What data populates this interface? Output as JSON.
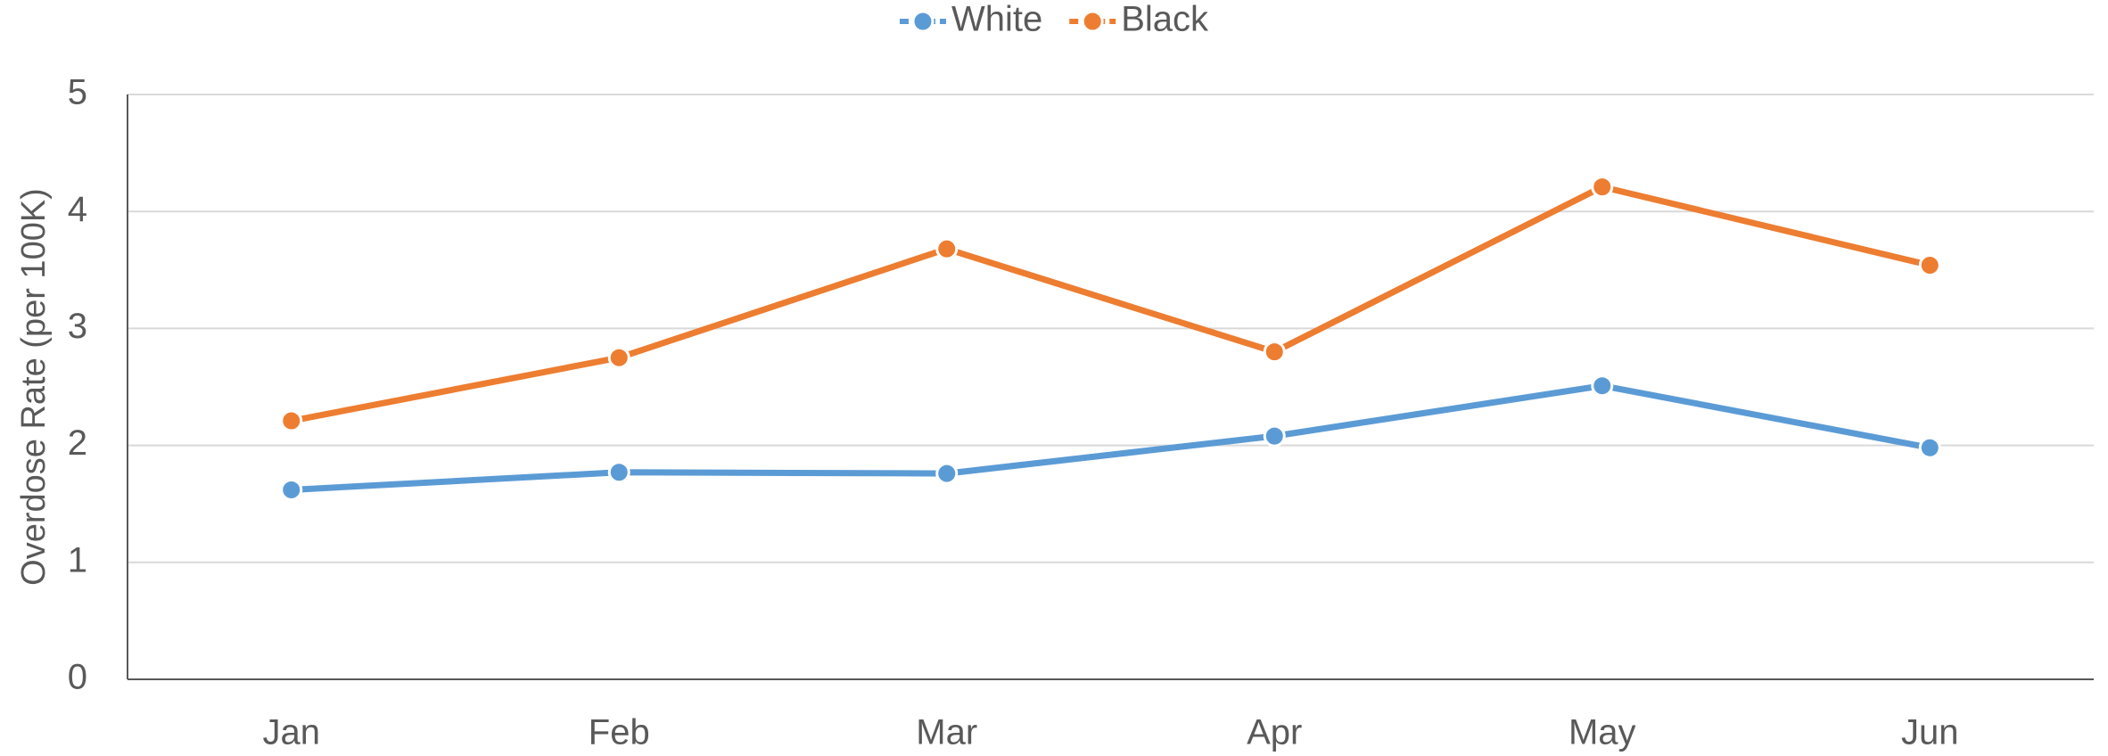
{
  "chart_data": {
    "type": "line",
    "y_label": "Overdose Rate (per 100K)",
    "categories": [
      "Jan",
      "Feb",
      "Mar",
      "Apr",
      "May",
      "Jun"
    ],
    "series": [
      {
        "name": "White",
        "color": "#5b9bd5",
        "values": [
          1.62,
          1.77,
          1.76,
          2.08,
          2.51,
          1.98
        ]
      },
      {
        "name": "Black",
        "color": "#ed7d31",
        "values": [
          2.21,
          2.75,
          3.68,
          2.8,
          4.21,
          3.54
        ]
      }
    ],
    "ylim": [
      0,
      5
    ],
    "yticks": [
      0,
      1,
      2,
      3,
      4,
      5
    ],
    "grid": true,
    "legend": "top"
  }
}
